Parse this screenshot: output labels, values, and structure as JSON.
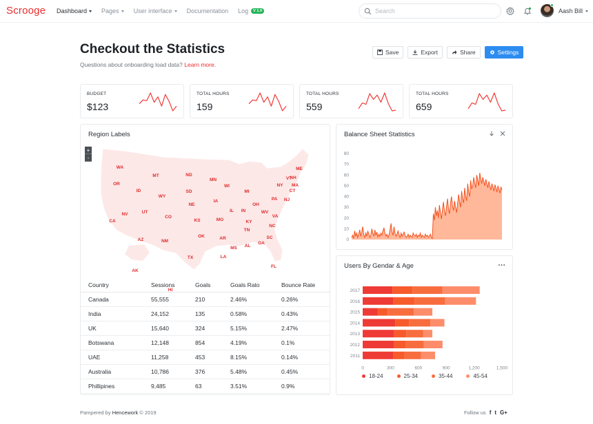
{
  "brand": "Scrooge",
  "nav": {
    "items": [
      {
        "label": "Dashboard",
        "caret": true
      },
      {
        "label": "Pages",
        "caret": true
      },
      {
        "label": "User interface",
        "caret": true
      },
      {
        "label": "Documentation",
        "caret": false
      },
      {
        "label": "Log",
        "caret": false
      }
    ],
    "log_badge": "V 1.0"
  },
  "search": {
    "placeholder": "Search"
  },
  "user": {
    "name": "Aash Bill"
  },
  "header": {
    "title": "Checkout the Statistics",
    "subtitle": "Questions about onboarding load data? ",
    "link": "Learn more."
  },
  "actions": {
    "save": "Save",
    "export": "Export",
    "share": "Share",
    "settings": "Settings"
  },
  "stats": [
    {
      "label": "BUDGET",
      "value": "$123",
      "spark": [
        12,
        17,
        16,
        26,
        14,
        21,
        9,
        24,
        15,
        3,
        9
      ]
    },
    {
      "label": "TOTAL HOURS",
      "value": "159",
      "spark": [
        12,
        17,
        16,
        26,
        14,
        21,
        9,
        24,
        15,
        3,
        9
      ]
    },
    {
      "label": "TOTAL HOURS",
      "value": "559",
      "spark": [
        5,
        13,
        11,
        26,
        18,
        24,
        14,
        27,
        12,
        2,
        3
      ]
    },
    {
      "label": "TOTAL HOURS",
      "value": "659",
      "spark": [
        5,
        13,
        11,
        26,
        18,
        24,
        14,
        27,
        12,
        2,
        3
      ]
    }
  ],
  "region": {
    "title": "Region Labels",
    "zoom_in": "+",
    "zoom_out": "-",
    "states": [
      "WA",
      "OR",
      "CA",
      "NV",
      "ID",
      "MT",
      "WY",
      "UT",
      "AZ",
      "CO",
      "NM",
      "ND",
      "SD",
      "NE",
      "KS",
      "OK",
      "TX",
      "MN",
      "IA",
      "MO",
      "AR",
      "LA",
      "WI",
      "IL",
      "MI",
      "IN",
      "OH",
      "KY",
      "TN",
      "MS",
      "AL",
      "GA",
      "FL",
      "SC",
      "NC",
      "VA",
      "WV",
      "PA",
      "NY",
      "VT",
      "NH",
      "ME",
      "MA",
      "CT",
      "NJ",
      "AK",
      "HI"
    ],
    "columns": [
      "Country",
      "Sessions",
      "Goals",
      "Goals Rato",
      "Bounce Rate"
    ],
    "rows": [
      [
        "Canada",
        "55,555",
        "210",
        "2.46%",
        "0.26%"
      ],
      [
        "India",
        "24,152",
        "135",
        "0.58%",
        "0.43%"
      ],
      [
        "UK",
        "15,640",
        "324",
        "5.15%",
        "2.47%"
      ],
      [
        "Botswana",
        "12,148",
        "854",
        "4.19%",
        "0.1%"
      ],
      [
        "UAE",
        "11,258",
        "453",
        "8.15%",
        "0.14%"
      ],
      [
        "Australia",
        "10,786",
        "376",
        "5.48%",
        "0.45%"
      ],
      [
        "Phillipines",
        "9,485",
        "63",
        "3.51%",
        "0.9%"
      ]
    ]
  },
  "balance": {
    "title": "Balance Sheet Statistics"
  },
  "gender": {
    "title": "Users By Gendar & Age"
  },
  "chart_data": [
    {
      "type": "area",
      "title": "Balance Sheet Statistics",
      "ylim": [
        0,
        80
      ],
      "yticks": [
        "0",
        "10",
        "20",
        "30",
        "40",
        "50",
        "60",
        "70",
        "80"
      ],
      "values": [
        2,
        4,
        1,
        8,
        3,
        6,
        2,
        5,
        9,
        3,
        7,
        12,
        4,
        2,
        6,
        3,
        8,
        5,
        2,
        4,
        10,
        6,
        3,
        9,
        4,
        7,
        2,
        5,
        3,
        6,
        4,
        8,
        11,
        6,
        3,
        5,
        2,
        4,
        9,
        15,
        7,
        4,
        12,
        6,
        3,
        5,
        8,
        4,
        2,
        6,
        3,
        5,
        7,
        4,
        2,
        3,
        5,
        2,
        4,
        3,
        2,
        6,
        4,
        3,
        5,
        2,
        4,
        3,
        6,
        2,
        4,
        3,
        2,
        5,
        3,
        4,
        2,
        3,
        5,
        2,
        1,
        24,
        18,
        30,
        22,
        27,
        20,
        32,
        25,
        19,
        28,
        35,
        26,
        22,
        30,
        38,
        28,
        24,
        34,
        40,
        31,
        27,
        36,
        30,
        25,
        33,
        42,
        35,
        30,
        45,
        38,
        34,
        48,
        40,
        36,
        52,
        44,
        40,
        55,
        47,
        50,
        58,
        52,
        48,
        60,
        55,
        50,
        62,
        56,
        52,
        58,
        54,
        50,
        56,
        52,
        48,
        54,
        50,
        46,
        52,
        49,
        45,
        51,
        48,
        44,
        50,
        47,
        43,
        49,
        46
      ]
    },
    {
      "type": "bar",
      "title": "Users By Gendar & Age",
      "orientation": "horizontal",
      "stacked": true,
      "categories": [
        "2017",
        "2016",
        "2015",
        "2014",
        "2013",
        "2012",
        "2011"
      ],
      "xticks": [
        "0",
        "300",
        "600",
        "900",
        "1,200",
        "1,500"
      ],
      "xlim": [
        0,
        1500
      ],
      "series": [
        {
          "name": "18-24",
          "color": "#ef3b36",
          "values": [
            320,
            330,
            160,
            350,
            340,
            340,
            330
          ]
        },
        {
          "name": "25-34",
          "color": "#f75b2c",
          "values": [
            220,
            230,
            110,
            150,
            130,
            120,
            120
          ]
        },
        {
          "name": "35-44",
          "color": "#f86d3e",
          "values": [
            320,
            330,
            280,
            230,
            180,
            200,
            180
          ]
        },
        {
          "name": "45-54",
          "color": "#fd8d6a",
          "values": [
            400,
            330,
            200,
            150,
            100,
            200,
            150
          ]
        }
      ]
    }
  ],
  "footer": {
    "left_prefix": "Pampered by ",
    "left_brand": "Hencework",
    "left_suffix": " © 2019",
    "follow": "Follow us",
    "fb": "f",
    "tw": "t",
    "gp": "G+"
  }
}
